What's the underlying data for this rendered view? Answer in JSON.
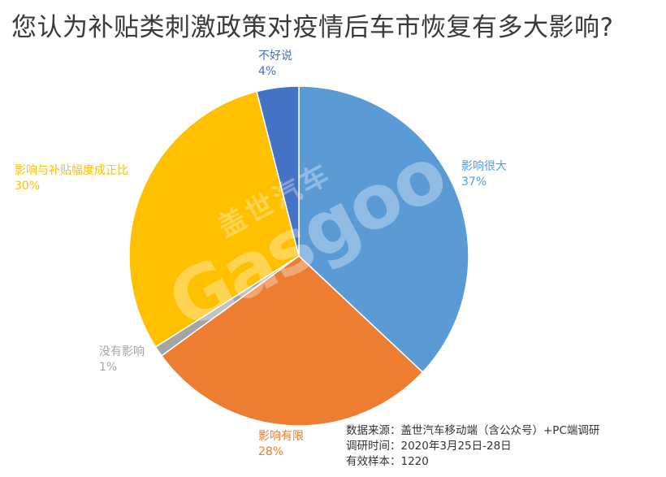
{
  "chart_data": {
    "type": "pie",
    "title": "您认为补贴类刺激政策对疫情后车市恢复有多大影响?",
    "slices": [
      {
        "label": "影响很大",
        "value": 37,
        "value_label": "37%",
        "color": "#5b9bd5"
      },
      {
        "label": "影响有限",
        "value": 28,
        "value_label": "28%",
        "color": "#ed7d31"
      },
      {
        "label": "没有影响",
        "value": 1,
        "value_label": "1%",
        "color": "#a5a5a5"
      },
      {
        "label": "影响与补贴幅度成正比",
        "value": 30,
        "value_label": "30%",
        "color": "#ffc000"
      },
      {
        "label": "不好说",
        "value": 4,
        "value_label": "4%",
        "color": "#4472c4"
      }
    ],
    "start": "top",
    "direction": "clockwise"
  },
  "watermark": {
    "brand_cn": "盖世汽车",
    "brand_en": "Gasgoo"
  },
  "source": {
    "line1": "数据来源：盖世汽车移动端（含公众号）+PC端调研",
    "line2": "调研时间：2020年3月25日-28日",
    "line3": "有效样本：1220"
  }
}
